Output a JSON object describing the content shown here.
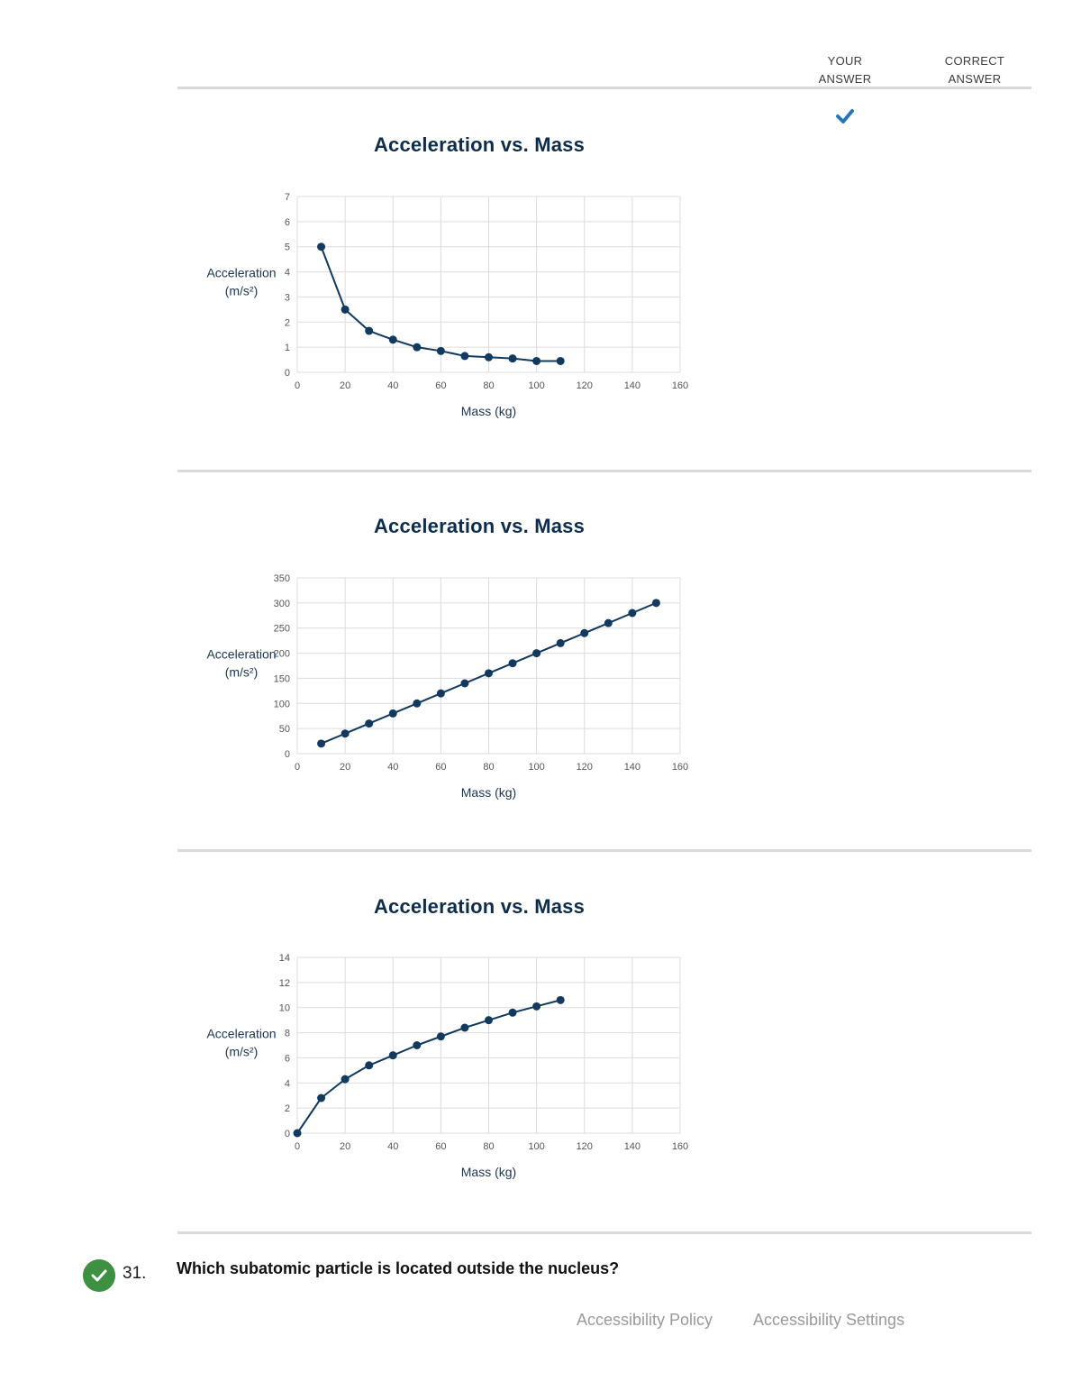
{
  "header": {
    "your_answer": "YOUR\nANSWER",
    "correct_answer": "CORRECT\nANSWER"
  },
  "colors": {
    "series": "#12395e",
    "grid": "#dcdcdc",
    "check": "#2478b8",
    "badge": "#3f9142"
  },
  "icons": {
    "selected_check": "check-icon",
    "correct_badge": "check-circle-icon"
  },
  "chart_data": [
    {
      "type": "line",
      "title": "Acceleration vs. Mass",
      "xlabel": "Mass (kg)",
      "ylabel": "Acceleration (m/s²)",
      "xlim": [
        0,
        160
      ],
      "ylim": [
        0,
        7
      ],
      "xticks": [
        0,
        20,
        40,
        60,
        80,
        100,
        120,
        140,
        160
      ],
      "yticks": [
        0,
        1,
        2,
        3,
        4,
        5,
        6,
        7
      ],
      "grid": true,
      "x": [
        10,
        20,
        30,
        40,
        50,
        60,
        70,
        80,
        90,
        100,
        110
      ],
      "y": [
        5.0,
        2.5,
        1.65,
        1.3,
        1.0,
        0.85,
        0.65,
        0.6,
        0.55,
        0.45,
        0.45
      ],
      "selected": true
    },
    {
      "type": "line",
      "title": "Acceleration vs. Mass",
      "xlabel": "Mass (kg)",
      "ylabel": "Acceleration (m/s²)",
      "xlim": [
        0,
        160
      ],
      "ylim": [
        0,
        350
      ],
      "xticks": [
        0,
        20,
        40,
        60,
        80,
        100,
        120,
        140,
        160
      ],
      "yticks": [
        0,
        50,
        100,
        150,
        200,
        250,
        300,
        350
      ],
      "grid": true,
      "x": [
        10,
        20,
        30,
        40,
        50,
        60,
        70,
        80,
        90,
        100,
        110,
        120,
        130,
        140,
        150
      ],
      "y": [
        20,
        40,
        60,
        80,
        100,
        120,
        140,
        160,
        180,
        200,
        220,
        240,
        260,
        280,
        300
      ]
    },
    {
      "type": "line",
      "title": "Acceleration vs. Mass",
      "xlabel": "Mass (kg)",
      "ylabel": "Acceleration (m/s²)",
      "xlim": [
        0,
        160
      ],
      "ylim": [
        0,
        14
      ],
      "xticks": [
        0,
        20,
        40,
        60,
        80,
        100,
        120,
        140,
        160
      ],
      "yticks": [
        0,
        2,
        4,
        6,
        8,
        10,
        12,
        14
      ],
      "grid": true,
      "x": [
        0,
        10,
        20,
        30,
        40,
        50,
        60,
        70,
        80,
        90,
        100,
        110
      ],
      "y": [
        0,
        2.8,
        4.3,
        5.4,
        6.2,
        7.0,
        7.7,
        8.4,
        9.0,
        9.6,
        10.1,
        10.6
      ]
    }
  ],
  "question": {
    "number": "31.",
    "text": "Which subatomic particle is located outside the nucleus?"
  },
  "footer": {
    "accessibility_policy": "Accessibility Policy",
    "accessibility_settings": "Accessibility Settings"
  }
}
